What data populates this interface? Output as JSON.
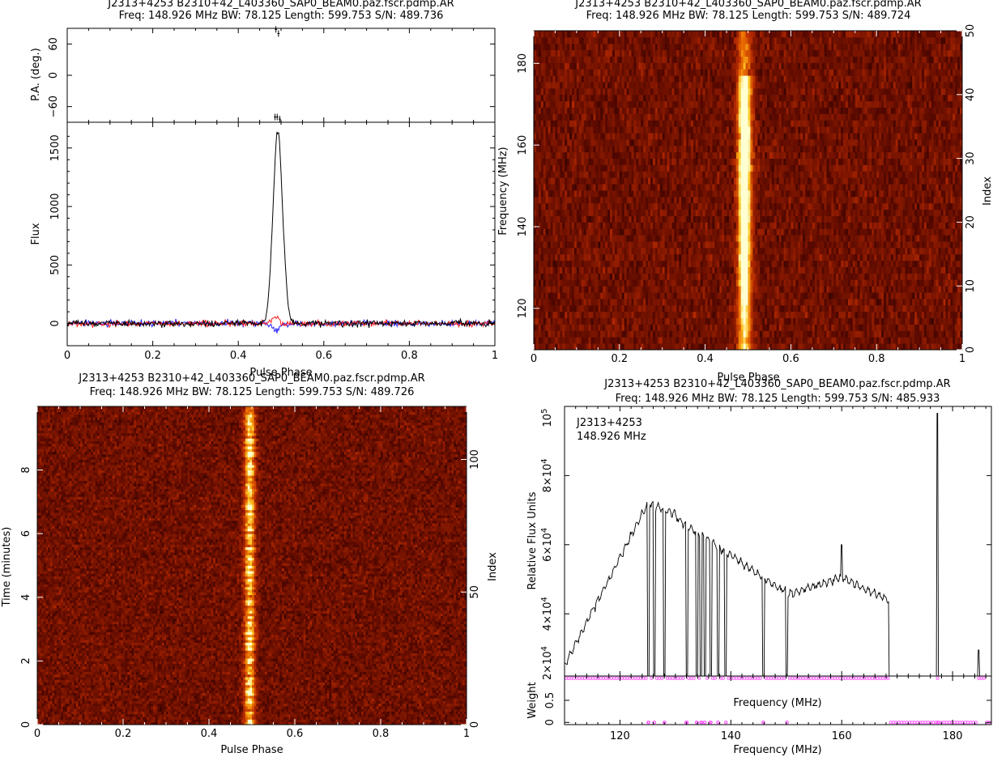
{
  "chart_data": [
    {
      "id": "profile",
      "type": "line",
      "title": "J2313+4253  B2310+42_L403360_SAP0_BEAM0.paz.fscr.pdmp.AR",
      "subtitle": "Freq:  148.926  MHz  BW:  78.125  Length:  599.753  S/N:  489.736",
      "xlabel": "Pulse Phase",
      "xlim": [
        0,
        1
      ],
      "xticks": [
        0,
        0.2,
        0.4,
        0.6,
        0.8,
        1
      ],
      "xticklabels": [
        "0",
        "0.2",
        "0.4",
        "0.6",
        "0.8",
        "1"
      ],
      "pa_panel": {
        "ylabel": "P.A. (deg.)",
        "ylim": [
          -90,
          90
        ],
        "yticks": [
          -60,
          0,
          60
        ],
        "yticklabels": [
          "−60",
          "0",
          "60"
        ],
        "points": [
          [
            0.488,
            88
          ],
          [
            0.494,
            80
          ],
          [
            0.486,
            -80
          ],
          [
            0.491,
            -80
          ],
          [
            0.497,
            -84
          ]
        ]
      },
      "flux_panel": {
        "ylabel": "Flux",
        "ylim": [
          -190,
          1720
        ],
        "yticks": [
          0,
          500,
          1000,
          1500
        ],
        "yticklabels": [
          "0",
          "500",
          "1000",
          "1500"
        ],
        "series": [
          {
            "key": "total",
            "color": "#000000",
            "peak_phase": 0.492,
            "peak": 1600,
            "width": 0.011
          },
          {
            "key": "linear",
            "color": "#ff2020",
            "peak_phase": 0.49,
            "peak": 55,
            "width": 0.01
          },
          {
            "key": "circular",
            "color": "#2020ff",
            "peak_phase": 0.49,
            "peak": -60,
            "width": 0.009
          }
        ]
      }
    },
    {
      "id": "freq_phase",
      "type": "heatmap",
      "title": "J2313+4253  B2310+42_L403360_SAP0_BEAM0.paz.fscr.pdmp.AR",
      "subtitle": "Freq:  148.926  MHz  BW:  78.125  Length:  599.753  S/N:  489.724",
      "xlabel": "Pulse Phase",
      "ylabel": "Frequency (MHz)",
      "ylabel_right": "Index",
      "xlim": [
        0,
        1
      ],
      "ylim": [
        109.86,
        187.99
      ],
      "ylim_right": [
        0,
        50
      ],
      "xticks": [
        0,
        0.2,
        0.4,
        0.6,
        0.8,
        1
      ],
      "xticklabels": [
        "0",
        "0.2",
        "0.4",
        "0.6",
        "0.8",
        "1"
      ],
      "yticks": [
        120,
        140,
        160,
        180
      ],
      "yticklabels": [
        "120",
        "140",
        "160",
        "180"
      ],
      "yticks_right": [
        0,
        10,
        20,
        30,
        40,
        50
      ],
      "yticklabels_right": [
        "0",
        "10",
        "20",
        "30",
        "40",
        "50"
      ],
      "pulse_phase": 0.492,
      "rows": 50
    },
    {
      "id": "time_phase",
      "type": "heatmap",
      "title": "J2313+4253  B2310+42_L403360_SAP0_BEAM0.paz.fscr.pdmp.AR",
      "subtitle": "Freq:  148.926  MHz  BW:  78.125  Length:  599.753  S/N:  489.726",
      "xlabel": "Pulse Phase",
      "ylabel": "Time (minutes)",
      "ylabel_right": "Index",
      "xlim": [
        0,
        1
      ],
      "ylim": [
        0,
        9.996
      ],
      "ylim_right": [
        0,
        120
      ],
      "xticks": [
        0,
        0.2,
        0.4,
        0.6,
        0.8,
        1
      ],
      "xticklabels": [
        "0",
        "0.2",
        "0.4",
        "0.6",
        "0.8",
        "1"
      ],
      "yticks": [
        0,
        2,
        4,
        6,
        8
      ],
      "yticklabels": [
        "0",
        "2",
        "4",
        "6",
        "8"
      ],
      "yticks_right": [
        0,
        50,
        100
      ],
      "yticklabels_right": [
        "0",
        "50",
        "100"
      ],
      "pulse_phase": 0.495,
      "rows": 120
    },
    {
      "id": "bandpass",
      "type": "line",
      "title": "J2313+4253  B2310+42_L403360_SAP0_BEAM0.paz.fscr.pdmp.AR",
      "subtitle": "Freq:  148.926  MHz  BW:  78.125  Length:  599.753  S/N:  485.933",
      "annotation_lines": [
        "J2313+4253",
        "148.926  MHz"
      ],
      "xlabel": "Frequency (MHz)",
      "inner_xlabel": "Frequency (MHz)",
      "xlim": [
        110,
        187
      ],
      "xticks": [
        120,
        140,
        160,
        180
      ],
      "xticklabels": [
        "120",
        "140",
        "160",
        "180"
      ],
      "flux_panel": {
        "ylabel": "Relative Flux Units",
        "ylim": [
          22000,
          100000
        ],
        "ytick_values": [
          40000,
          60000,
          80000
        ],
        "ytick_mantissas": [
          "4×10",
          "6×10",
          "8×10"
        ],
        "ytick_exponent": "4",
        "top_label": "10",
        "top_exponent": "5",
        "bottom_label": "2×10",
        "bottom_exponent": "4",
        "zapped_freqs": [
          125.1,
          126.2,
          128.0,
          132.1,
          133.9,
          134.6,
          135.3,
          136.4,
          137.7,
          139.1,
          145.9,
          150.1
        ],
        "spikes": [
          [
            160.0,
            60000
          ],
          [
            177.3,
            98000
          ],
          [
            184.7,
            29500
          ]
        ],
        "band_edge": 168.5,
        "series_color": "#000000"
      },
      "weight_panel": {
        "ylabel": "Weight",
        "ylim": [
          -0.05,
          1.05
        ],
        "yticks": [
          0,
          0.5
        ],
        "yticklabels": [
          "0",
          "0.5"
        ],
        "marker_color": "#ff44ff",
        "zero_weight_freqs": [
          125.1,
          126.2,
          128.0,
          132.1,
          133.9,
          134.6,
          135.3,
          136.4,
          137.7,
          139.1,
          145.9,
          150.1,
          177.3
        ]
      }
    }
  ]
}
